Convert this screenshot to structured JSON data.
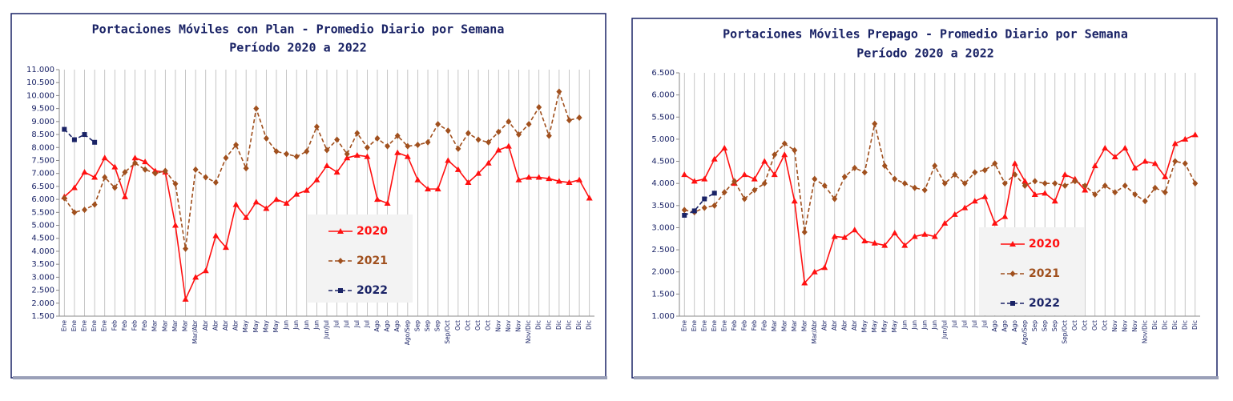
{
  "chart_data": [
    {
      "type": "line",
      "title": "Portaciones Móviles con Plan - Promedio Diario por Semana",
      "subtitle": "Período 2020 a 2022",
      "categories": [
        "Ene",
        "Ene",
        "Ene",
        "Ene",
        "Ene",
        "Feb",
        "Feb",
        "Feb",
        "Feb",
        "Mar",
        "Mar",
        "Mar",
        "Mar",
        "Mar/Abr",
        "Abr",
        "Abr",
        "Abr",
        "Abr",
        "May",
        "May",
        "May",
        "May",
        "Jun",
        "Jun",
        "Jun",
        "Jun",
        "Jun/Jul",
        "Jul",
        "Jul",
        "Jul",
        "Jul",
        "Ago",
        "Ago",
        "Ago",
        "Ago/Sep",
        "Sep",
        "Sep",
        "Sep",
        "Sep/Oct",
        "Oct",
        "Oct",
        "Oct",
        "Oct",
        "Nov",
        "Nov",
        "Nov",
        "Nov/Dic",
        "Dic",
        "Dic",
        "Dic",
        "Dic",
        "Dic",
        "Dic"
      ],
      "series": [
        {
          "name": "2020",
          "color": "#ff1010",
          "marker": "triangle",
          "dashed": false,
          "values": [
            6100,
            6450,
            7050,
            6850,
            7600,
            7250,
            6100,
            7600,
            7450,
            7100,
            7050,
            5000,
            2150,
            3000,
            3250,
            4600,
            4150,
            5800,
            5300,
            5900,
            5650,
            6000,
            5850,
            6200,
            6350,
            6750,
            7300,
            7050,
            7600,
            7700,
            7650,
            6000,
            5850,
            7800,
            7650,
            6750,
            6400,
            6400,
            7500,
            7150,
            6650,
            7000,
            7400,
            7900,
            8050,
            6750,
            6850,
            6850,
            6800,
            6700,
            6650,
            6750,
            6050
          ]
        },
        {
          "name": "2021",
          "color": "#a0501e",
          "marker": "diamond",
          "dashed": true,
          "values": [
            6050,
            5500,
            5600,
            5800,
            6850,
            6450,
            7050,
            7400,
            7150,
            7000,
            7100,
            6600,
            4100,
            7150,
            6850,
            6650,
            7600,
            8100,
            7200,
            9500,
            8350,
            7850,
            7750,
            7650,
            7850,
            8800,
            7900,
            8300,
            7750,
            8550,
            8000,
            8350,
            8050,
            8450,
            8050,
            8100,
            8200,
            8900,
            8650,
            7950,
            8550,
            8300,
            8200,
            8600,
            9000,
            8500,
            8900,
            9550,
            8450,
            10150,
            9050,
            9150,
            null
          ]
        },
        {
          "name": "2022",
          "color": "#1a2366",
          "marker": "square",
          "dashed": true,
          "values": [
            8700,
            8300,
            8500,
            8200,
            null,
            null,
            null,
            null,
            null,
            null,
            null,
            null,
            null,
            null,
            null,
            null,
            null,
            null,
            null,
            null,
            null,
            null,
            null,
            null,
            null,
            null,
            null,
            null,
            null,
            null,
            null,
            null,
            null,
            null,
            null,
            null,
            null,
            null,
            null,
            null,
            null,
            null,
            null,
            null,
            null,
            null,
            null,
            null,
            null,
            null,
            null,
            null,
            null
          ]
        }
      ],
      "ylim": [
        1500,
        11000
      ],
      "yticks": [
        {
          "value": 1500,
          "label": "1.500"
        },
        {
          "value": 2000,
          "label": "2.000"
        },
        {
          "value": 2500,
          "label": "2.500"
        },
        {
          "value": 3000,
          "label": "3.000"
        },
        {
          "value": 3500,
          "label": "3.500"
        },
        {
          "value": 4000,
          "label": "4.000"
        },
        {
          "value": 4500,
          "label": "4.500"
        },
        {
          "value": 5000,
          "label": "5.000"
        },
        {
          "value": 5500,
          "label": "5.500"
        },
        {
          "value": 6000,
          "label": "6.000"
        },
        {
          "value": 6500,
          "label": "6.500"
        },
        {
          "value": 7000,
          "label": "7.000"
        },
        {
          "value": 7500,
          "label": "7.500"
        },
        {
          "value": 8000,
          "label": "8.000"
        },
        {
          "value": 8500,
          "label": "8.500"
        },
        {
          "value": 9000,
          "label": "9.000"
        },
        {
          "value": 9500,
          "label": "9.500"
        },
        {
          "value": 10000,
          "label": "10.000"
        },
        {
          "value": 10500,
          "label": "10.500"
        },
        {
          "value": 11000,
          "label": "11.000"
        }
      ],
      "grid": "x"
    },
    {
      "type": "line",
      "title": "Portaciones Móviles Prepago - Promedio Diario por Semana",
      "subtitle": "Período 2020 a 2022",
      "categories": [
        "Ene",
        "Ene",
        "Ene",
        "Ene",
        "Ene",
        "Feb",
        "Feb",
        "Feb",
        "Feb",
        "Mar",
        "Mar",
        "Mar",
        "Mar",
        "Mar/Abr",
        "Abr",
        "Abr",
        "Abr",
        "Abr",
        "May",
        "May",
        "May",
        "May",
        "Jun",
        "Jun",
        "Jun",
        "Jun",
        "Jun/Jul",
        "Jul",
        "Jul",
        "Jul",
        "Jul",
        "Ago",
        "Ago",
        "Ago",
        "Ago/Sep",
        "Sep",
        "Sep",
        "Sep",
        "Sep/Oct",
        "Oct",
        "Oct",
        "Oct",
        "Oct",
        "Nov",
        "Nov",
        "Nov",
        "Nov/Dic",
        "Dic",
        "Dic",
        "Dic",
        "Dic",
        "Dic"
      ],
      "series": [
        {
          "name": "2020",
          "color": "#ff1010",
          "marker": "triangle",
          "dashed": false,
          "values": [
            4200,
            4050,
            4100,
            4550,
            4800,
            4000,
            4200,
            4100,
            4500,
            4200,
            4650,
            3600,
            1750,
            2000,
            2100,
            2800,
            2780,
            2950,
            2700,
            2650,
            2600,
            2880,
            2600,
            2800,
            2850,
            2800,
            3100,
            3300,
            3450,
            3600,
            3700,
            3100,
            3250,
            4450,
            4050,
            3750,
            3780,
            3600,
            4200,
            4100,
            3850,
            4400,
            4800,
            4600,
            4800,
            4350,
            4500,
            4450,
            4150,
            4900,
            5000,
            5100
          ]
        },
        {
          "name": "2021",
          "color": "#a0501e",
          "marker": "diamond",
          "dashed": true,
          "values": [
            3400,
            3350,
            3450,
            3500,
            3800,
            4050,
            3650,
            3850,
            4000,
            4650,
            4900,
            4750,
            2900,
            4100,
            3950,
            3650,
            4150,
            4350,
            4250,
            5350,
            4400,
            4100,
            4000,
            3900,
            3850,
            4400,
            4000,
            4200,
            4000,
            4250,
            4300,
            4450,
            4000,
            4200,
            3950,
            4050,
            4000,
            4000,
            3950,
            4050,
            3950,
            3750,
            3950,
            3800,
            3950,
            3750,
            3600,
            3900,
            3800,
            4500,
            4450,
            4000
          ]
        },
        {
          "name": "2022",
          "color": "#1a2366",
          "marker": "square",
          "dashed": true,
          "values": [
            3280,
            3380,
            3650,
            3780,
            null,
            null,
            null,
            null,
            null,
            null,
            null,
            null,
            null,
            null,
            null,
            null,
            null,
            null,
            null,
            null,
            null,
            null,
            null,
            null,
            null,
            null,
            null,
            null,
            null,
            null,
            null,
            null,
            null,
            null,
            null,
            null,
            null,
            null,
            null,
            null,
            null,
            null,
            null,
            null,
            null,
            null,
            null,
            null,
            null,
            null,
            null,
            null
          ]
        }
      ],
      "ylim": [
        1000,
        6500
      ],
      "yticks": [
        {
          "value": 1000,
          "label": "1.000"
        },
        {
          "value": 1500,
          "label": "1.500"
        },
        {
          "value": 2000,
          "label": "2.000"
        },
        {
          "value": 2500,
          "label": "2.500"
        },
        {
          "value": 3000,
          "label": "3.000"
        },
        {
          "value": 3500,
          "label": "3.500"
        },
        {
          "value": 4000,
          "label": "4.000"
        },
        {
          "value": 4500,
          "label": "4.500"
        },
        {
          "value": 5000,
          "label": "5.000"
        },
        {
          "value": 5500,
          "label": "5.500"
        },
        {
          "value": 6000,
          "label": "6.000"
        },
        {
          "value": 6500,
          "label": "6.500"
        }
      ],
      "grid": "x"
    }
  ]
}
